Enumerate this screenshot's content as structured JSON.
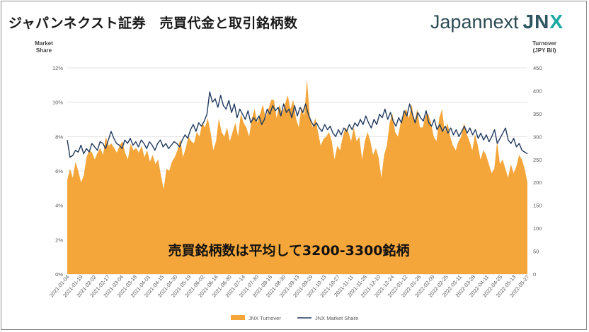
{
  "header": {
    "title": "ジャパンネクスト証券　売買代金と取引銘柄数",
    "logo_word": "Japannext",
    "logo_mark": "JNX"
  },
  "annotation": "売買銘柄数は平均して3200-3300銘柄",
  "colors": {
    "turnover": "#f4a63a",
    "share": "#223a5e",
    "grid": "#e3e3e3",
    "axis_text": "#595959"
  },
  "chart_data": {
    "type": "area+line",
    "left_axis": {
      "title_line1": "Market",
      "title_line2": "Share",
      "ticks": [
        "0%",
        "2%",
        "4%",
        "6%",
        "8%",
        "10%",
        "12%"
      ],
      "range": [
        0,
        12
      ]
    },
    "right_axis": {
      "title_line1": "Turnover",
      "title_line2": "(JPY Bil)",
      "ticks": [
        "0",
        "50",
        "100",
        "150",
        "200",
        "250",
        "300",
        "350",
        "400",
        "450"
      ],
      "range": [
        0,
        450
      ]
    },
    "x_labels": [
      "2021-01-04",
      "2021-01-19",
      "2021-02-02",
      "2021-02-17",
      "2021-03-04",
      "2021-03-18",
      "2021-04-01",
      "2021-04-15",
      "2021-04-30",
      "2021-05-19",
      "2021-06-02",
      "2021-06-16",
      "2021-06-30",
      "2021-07-14",
      "2021-07-30",
      "2021-08-16",
      "2021-08-30",
      "2021-09-13",
      "2021-09-29",
      "2021-10-13",
      "2021-10-27",
      "2021-11-11",
      "2021-11-26",
      "2021-12-10",
      "2021-12-24",
      "2022-01-12",
      "2022-01-26",
      "2022-02-09",
      "2022-02-25",
      "2022-03-11",
      "2022-03-28",
      "2022-04-11",
      "2022-04-25",
      "2022-05-13",
      "2022-05-27"
    ],
    "series": [
      {
        "name": "JNX Turnover",
        "axis": "right",
        "kind": "area",
        "values": [
          205,
          230,
          210,
          245,
          225,
          200,
          215,
          255,
          270,
          265,
          250,
          265,
          275,
          260,
          300,
          280,
          285,
          275,
          265,
          280,
          290,
          265,
          250,
          285,
          270,
          275,
          265,
          280,
          255,
          270,
          245,
          260,
          240,
          250,
          215,
          185,
          230,
          225,
          245,
          255,
          270,
          295,
          255,
          275,
          300,
          290,
          285,
          310,
          300,
          330,
          320,
          340,
          310,
          270,
          290,
          340,
          310,
          300,
          320,
          290,
          310,
          330,
          300,
          350,
          330,
          320,
          300,
          340,
          360,
          330,
          350,
          370,
          340,
          360,
          380,
          380,
          340,
          370,
          350,
          370,
          390,
          360,
          380,
          340,
          320,
          365,
          345,
          425,
          345,
          320,
          340,
          310,
          280,
          295,
          300,
          310,
          290,
          250,
          280,
          270,
          300,
          320,
          310,
          290,
          320,
          290,
          300,
          250,
          290,
          310,
          290,
          260,
          275,
          255,
          210,
          260,
          280,
          330,
          350,
          310,
          300,
          330,
          350,
          360,
          340,
          370,
          330,
          360,
          320,
          320,
          345,
          350,
          330,
          300,
          290,
          340,
          360,
          310,
          330,
          300,
          280,
          270,
          290,
          300,
          330,
          305,
          290,
          270,
          305,
          280,
          250,
          270,
          260,
          240,
          220,
          230,
          290,
          240,
          250,
          230,
          210,
          240,
          220,
          235,
          260,
          250,
          230,
          200
        ]
      },
      {
        "name": "JNX Market Share",
        "axis": "left",
        "kind": "line",
        "values": [
          7.8,
          6.8,
          6.9,
          7.2,
          7.1,
          7.5,
          7.0,
          7.3,
          7.1,
          7.6,
          7.4,
          7.2,
          7.7,
          7.6,
          7.3,
          7.8,
          8.3,
          7.9,
          7.6,
          7.5,
          7.3,
          7.8,
          7.6,
          7.9,
          7.5,
          7.7,
          7.4,
          7.8,
          7.6,
          7.3,
          7.7,
          7.5,
          7.2,
          7.6,
          7.8,
          7.4,
          7.6,
          7.3,
          7.5,
          7.7,
          7.6,
          7.4,
          7.8,
          8.1,
          7.9,
          8.4,
          8.7,
          8.3,
          8.8,
          8.6,
          8.9,
          9.3,
          10.6,
          10.0,
          10.2,
          9.7,
          10.4,
          9.8,
          9.6,
          10.1,
          9.4,
          9.9,
          9.1,
          9.6,
          9.3,
          9.0,
          9.5,
          8.8,
          9.1,
          8.9,
          9.2,
          8.7,
          9.0,
          9.6,
          9.3,
          9.8,
          9.5,
          9.7,
          9.2,
          9.9,
          9.4,
          9.6,
          9.1,
          9.8,
          9.2,
          9.7,
          9.4,
          9.9,
          9.3,
          8.9,
          8.6,
          8.8,
          8.5,
          8.3,
          8.7,
          8.4,
          8.6,
          8.2,
          8.0,
          8.4,
          8.1,
          8.5,
          8.3,
          8.7,
          8.4,
          8.8,
          8.6,
          9.0,
          8.7,
          9.2,
          8.8,
          8.5,
          9.0,
          8.7,
          9.3,
          9.1,
          9.6,
          9.0,
          9.4,
          8.9,
          8.6,
          9.1,
          8.8,
          9.5,
          9.2,
          9.9,
          9.3,
          8.8,
          9.4,
          9.1,
          8.9,
          9.5,
          8.8,
          8.6,
          9.0,
          8.4,
          8.7,
          8.3,
          8.6,
          8.2,
          8.5,
          8.1,
          8.4,
          8.0,
          8.3,
          8.6,
          8.2,
          8.5,
          8.1,
          8.4,
          7.9,
          8.2,
          7.8,
          8.1,
          7.7,
          8.0,
          8.4,
          7.6,
          7.9,
          8.2,
          8.5,
          7.8,
          7.6,
          7.9,
          7.4,
          7.6,
          7.2,
          7.1,
          7.0
        ]
      }
    ]
  }
}
